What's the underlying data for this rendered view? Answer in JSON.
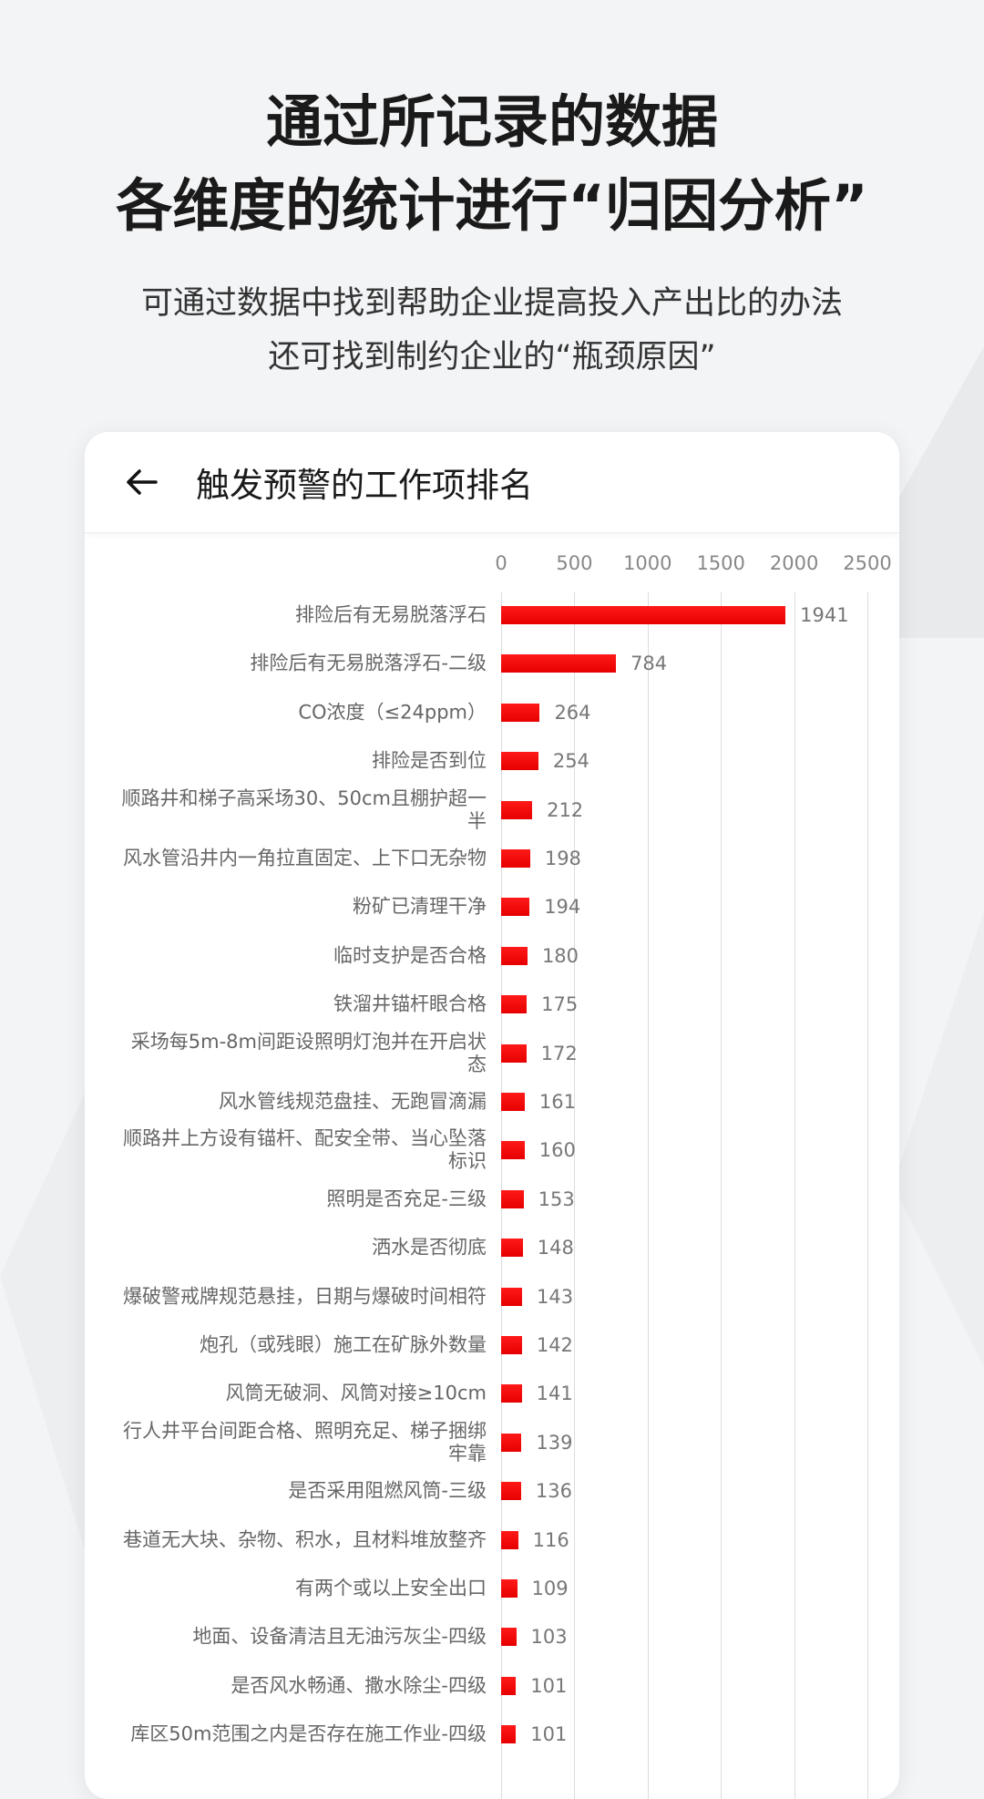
{
  "headline": {
    "line1": "通过所记录的数据",
    "line2": "各维度的统计进行“归因分析”"
  },
  "subtitle": {
    "line1": "可通过数据中找到帮助企业提高投入产出比的办法",
    "line2": "还可找到制约企业的“瓶颈原因”"
  },
  "card": {
    "back_icon": "arrow-left-icon",
    "title": "触发预警的工作项排名"
  },
  "colors": {
    "bar": "#ff0000",
    "background": "#f3f4f6"
  },
  "chart_data": {
    "type": "bar",
    "orientation": "horizontal",
    "xlim": [
      0,
      2500
    ],
    "ticks": [
      "0",
      "500",
      "1000",
      "1500",
      "2000",
      "2500"
    ],
    "grid": true,
    "categories": [
      "排险后有无易脱落浮石",
      "排险后有无易脱落浮石-二级",
      "CO浓度（≤24ppm）",
      "排险是否到位",
      "顺路井和梯子高采场30、50cm且棚护超一半",
      "风水管沿井内一角拉直固定、上下口无杂物",
      "粉矿已清理干净",
      "临时支护是否合格",
      "铁溜井锚杆眼合格",
      "采场每5m-8m间距设照明灯泡并在开启状态",
      "风水管线规范盘挂、无跑冒滴漏",
      "顺路井上方设有锚杆、配安全带、当心坠落标识",
      "照明是否充足-三级",
      "洒水是否彻底",
      "爆破警戒牌规范悬挂，日期与爆破时间相符",
      "炮孔（或残眼）施工在矿脉外数量",
      "风筒无破洞、风筒对接≥10cm",
      "行人井平台间距合格、照明充足、梯子捆绑牢靠",
      "是否采用阻燃风筒-三级",
      "巷道无大块、杂物、积水，且材料堆放整齐",
      "有两个或以上安全出口",
      "地面、设备清洁且无油污灰尘-四级",
      "是否风水畅通、撒水除尘-四级",
      "库区50m范围之内是否存在施工作业-四级"
    ],
    "values": [
      1941,
      784,
      264,
      254,
      212,
      198,
      194,
      180,
      175,
      172,
      161,
      160,
      153,
      148,
      143,
      142,
      141,
      139,
      136,
      116,
      109,
      103,
      101,
      101
    ]
  }
}
